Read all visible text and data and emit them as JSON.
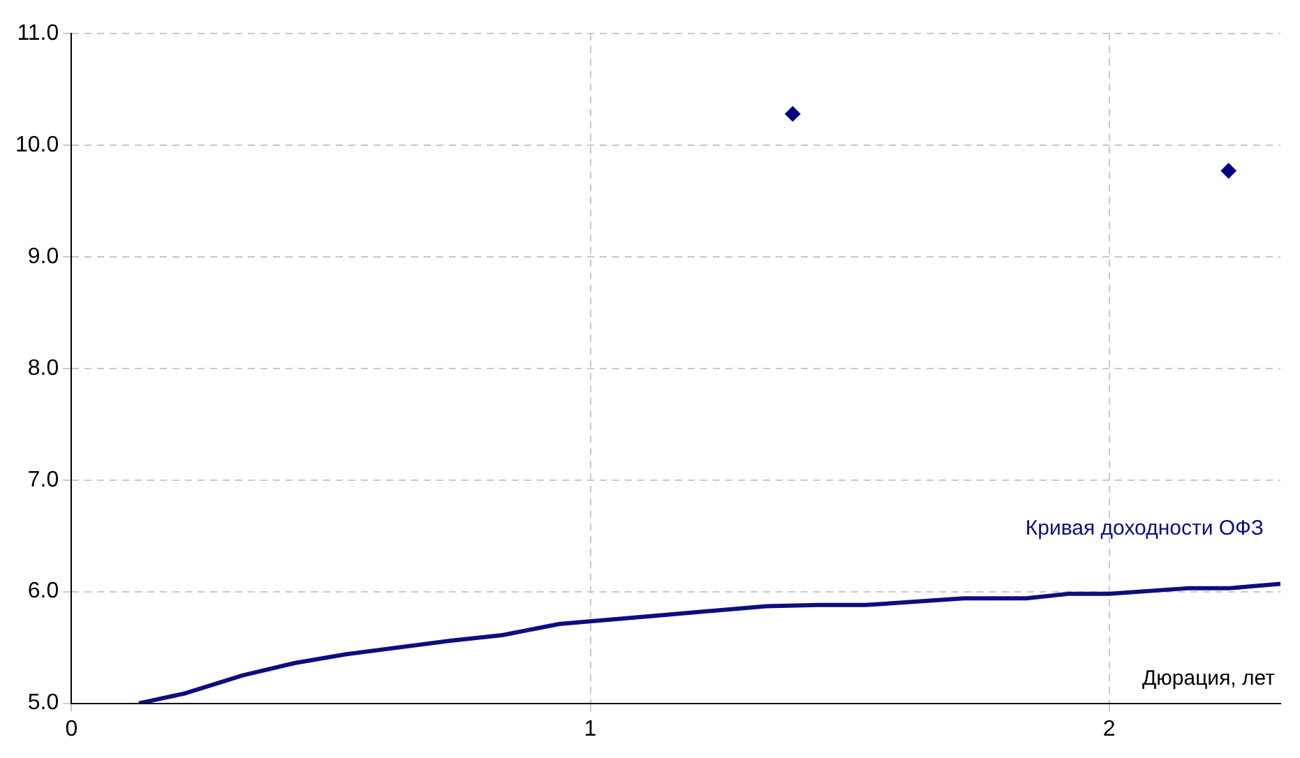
{
  "chart_data": {
    "type": "scatter",
    "xlabel": "Дюрация, лет",
    "xlim": [
      0,
      2.33
    ],
    "xticks": [
      0,
      1,
      2
    ],
    "ylim": [
      5,
      11
    ],
    "yticks": [
      {
        "value": 5,
        "label": "5.0"
      },
      {
        "value": 6,
        "label": "6.0"
      },
      {
        "value": 7,
        "label": "7.0"
      },
      {
        "value": 8,
        "label": "8.0"
      },
      {
        "value": 9,
        "label": "9.0"
      },
      {
        "value": 10,
        "label": "10.0"
      },
      {
        "value": 11,
        "label": "11.0"
      }
    ],
    "grid": true,
    "legend": false,
    "series": [
      {
        "type": "line",
        "color": "#0d0d80",
        "marker": "none",
        "x": [
          0.13,
          0.22,
          0.33,
          0.43,
          0.53,
          0.73,
          0.83,
          0.94,
          1.14,
          1.34,
          1.44,
          1.53,
          1.72,
          1.84,
          1.92,
          2.0,
          2.15,
          2.23,
          2.33
        ],
        "values": [
          5.0,
          5.09,
          5.25,
          5.36,
          5.44,
          5.56,
          5.61,
          5.71,
          5.79,
          5.87,
          5.88,
          5.88,
          5.94,
          5.94,
          5.98,
          5.98,
          6.03,
          6.03,
          6.07
        ]
      },
      {
        "color": "#000080",
        "marker": "diamond",
        "x": [
          1.39,
          2.23
        ],
        "values": [
          10.28,
          9.77
        ]
      }
    ],
    "annotations": [
      "Кривая доходности ОФЗ"
    ]
  }
}
